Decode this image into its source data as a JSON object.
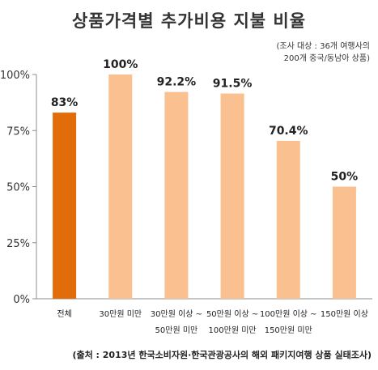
{
  "chart_data": {
    "type": "bar",
    "title": "상품가격별 추가비용 지불 비율",
    "note_lines": [
      "(조사 대상 : 36개 여행사의",
      "200개 중국/동남아 상품)"
    ],
    "source": "(출처 : 2013년 한국소비자원·한국관광공사의 해외 패키지여행 상품 실태조사)",
    "categories": [
      [
        "전체"
      ],
      [
        "30만원 미만"
      ],
      [
        "30만원 이상 ~",
        "50만원 미만"
      ],
      [
        "50만원 이상 ~",
        "100만원 미만"
      ],
      [
        "100만원 이상 ~",
        "150만원 미만"
      ],
      [
        "150만원 이상"
      ]
    ],
    "values": [
      83,
      100,
      92.2,
      91.5,
      70.4,
      50
    ],
    "value_labels": [
      "83%",
      "100%",
      "92.2%",
      "91.5%",
      "70.4%",
      "50%"
    ],
    "ylim": [
      0,
      100
    ],
    "yticks": [
      0,
      25,
      50,
      75,
      100
    ],
    "ytick_labels": [
      "0%",
      "25%",
      "50%",
      "75%",
      "100%"
    ],
    "grid": false,
    "colors": {
      "highlight": "#E36C0A",
      "bar": "#FAC090",
      "axis": "#8C8C8C"
    },
    "highlight_index": 0
  }
}
